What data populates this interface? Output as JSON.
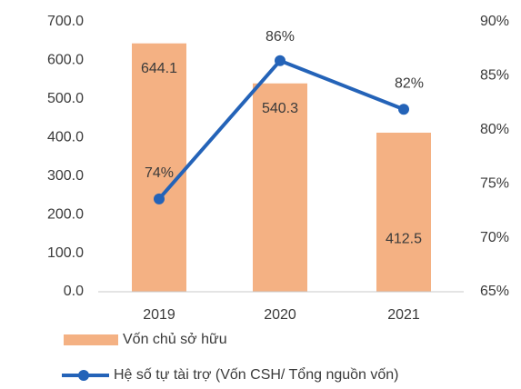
{
  "chart_data": {
    "type": "bar",
    "categories": [
      "2019",
      "2020",
      "2021"
    ],
    "series": [
      {
        "name": "Vốn chủ sở hữu",
        "type": "bar",
        "color": "#f4b183",
        "values": [
          644.1,
          540.3,
          412.5
        ]
      },
      {
        "name": "Hệ số tự tài trợ (Vốn CSH/ Tổng nguồn vốn)",
        "type": "line",
        "axis": "y2",
        "color": "#2463b8",
        "values": [
          73.6,
          86.4,
          81.9
        ],
        "value_labels": [
          "74%",
          "86%",
          "82%"
        ]
      }
    ],
    "ylim": [
      0,
      700
    ],
    "yticks": [
      {
        "value": 0,
        "label": "0.0"
      },
      {
        "value": 100,
        "label": "100.0"
      },
      {
        "value": 200,
        "label": "200.0"
      },
      {
        "value": 300,
        "label": "300.0"
      },
      {
        "value": 400,
        "label": "400.0"
      },
      {
        "value": 500,
        "label": "500.0"
      },
      {
        "value": 600,
        "label": "600.0"
      },
      {
        "value": 700,
        "label": "700.0"
      }
    ],
    "y2lim": [
      65,
      90
    ],
    "y2ticks": [
      {
        "value": 65,
        "label": "65%"
      },
      {
        "value": 70,
        "label": "70%"
      },
      {
        "value": 75,
        "label": "75%"
      },
      {
        "value": 80,
        "label": "80%"
      },
      {
        "value": 85,
        "label": "85%"
      },
      {
        "value": 90,
        "label": "90%"
      }
    ],
    "legend": "bottom"
  }
}
